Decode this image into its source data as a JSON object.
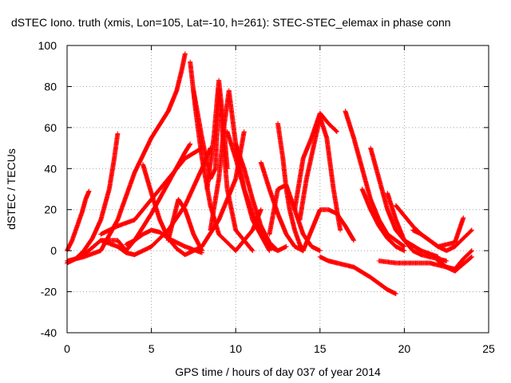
{
  "chart_data": {
    "type": "scatter",
    "title": "dSTEC Iono. truth (xmis, Lon=105, Lat=-10, h=261): STEC-STEC_elemax in phase conn",
    "xlabel": "GPS time / hours of day 037 of year 2014",
    "ylabel": "dSTEC  / TECUs",
    "xlim": [
      0,
      25
    ],
    "ylim": [
      -40,
      100
    ],
    "xticks": [
      0,
      5,
      10,
      15,
      20,
      25
    ],
    "yticks": [
      -40,
      -20,
      0,
      20,
      40,
      60,
      80,
      100
    ],
    "grid": true,
    "marker": "+",
    "color": "#ff0000",
    "series": [
      {
        "x": [
          0.0,
          0.3,
          0.6,
          0.9,
          1.1,
          1.3
        ],
        "y": [
          0,
          5,
          12,
          19,
          25,
          29
        ]
      },
      {
        "x": [
          0.0,
          0.5,
          1.0,
          1.5,
          2.0,
          2.5,
          2.8,
          3.0
        ],
        "y": [
          -6,
          -4,
          0,
          6,
          15,
          30,
          45,
          57
        ]
      },
      {
        "x": [
          0.0,
          1.0,
          2.0,
          3.0,
          4.0,
          5.0,
          6.0,
          6.5,
          6.8,
          7.0
        ],
        "y": [
          -5,
          -3,
          0,
          15,
          38,
          55,
          68,
          78,
          88,
          96
        ]
      },
      {
        "x": [
          0.0,
          1.0,
          2.0,
          3.0,
          3.5,
          4.0,
          5.0,
          6.0,
          7.0,
          7.3
        ],
        "y": [
          -6,
          -2,
          5,
          5,
          0,
          5,
          18,
          33,
          48,
          52
        ]
      },
      {
        "x": [
          2.0,
          3.0,
          3.5,
          4.0,
          5.0,
          6.0,
          7.0,
          8.0,
          8.5
        ],
        "y": [
          5,
          2,
          -1,
          -2,
          2,
          10,
          22,
          40,
          50
        ]
      },
      {
        "x": [
          3.5,
          4.0,
          4.5,
          5.0,
          5.5,
          6.0,
          7.0,
          8.0
        ],
        "y": [
          3,
          5,
          8,
          10,
          9,
          6,
          2,
          -1
        ]
      },
      {
        "x": [
          4.5,
          5.0,
          5.5,
          6.0,
          6.5,
          7.0,
          8.0,
          9.0,
          10.0,
          10.5
        ],
        "y": [
          42,
          28,
          15,
          6,
          1,
          -2,
          2,
          15,
          35,
          58
        ]
      },
      {
        "x": [
          6.0,
          6.3,
          6.6,
          7.0,
          7.5,
          8.0
        ],
        "y": [
          5,
          15,
          25,
          20,
          8,
          0
        ]
      },
      {
        "x": [
          7.3,
          7.6,
          8.0,
          8.5,
          9.0,
          10.0,
          11.0,
          11.5
        ],
        "y": [
          92,
          70,
          45,
          22,
          8,
          0,
          10,
          20
        ]
      },
      {
        "x": [
          7.5,
          8.0,
          8.5,
          8.8,
          9.0,
          9.5,
          10.0,
          11.0
        ],
        "y": [
          78,
          55,
          35,
          40,
          78,
          30,
          10,
          0
        ]
      },
      {
        "x": [
          8.3,
          8.7,
          9.0,
          9.3,
          9.5
        ],
        "y": [
          30,
          55,
          83,
          60,
          40
        ]
      },
      {
        "x": [
          8.5,
          9.0,
          9.3,
          9.6,
          10.0,
          10.5,
          11.0,
          12.0
        ],
        "y": [
          10,
          35,
          60,
          78,
          52,
          30,
          15,
          0
        ]
      },
      {
        "x": [
          9.5,
          10.0,
          10.5,
          11.0,
          11.5,
          12.0,
          12.5
        ],
        "y": [
          58,
          45,
          30,
          18,
          8,
          2,
          0
        ]
      },
      {
        "x": [
          10.0,
          10.5,
          11.0,
          11.5,
          12.0,
          12.5,
          13.0
        ],
        "y": [
          52,
          40,
          25,
          12,
          4,
          0,
          2
        ]
      },
      {
        "x": [
          11.5,
          12.0,
          12.5,
          13.0,
          13.5,
          14.0
        ],
        "y": [
          43,
          30,
          18,
          8,
          2,
          0
        ]
      },
      {
        "x": [
          12.5,
          12.8,
          13.0,
          13.2,
          13.5,
          13.8,
          14.0
        ],
        "y": [
          62,
          45,
          30,
          20,
          10,
          3,
          0
        ]
      },
      {
        "x": [
          12.0,
          12.5,
          13.0,
          13.5,
          14.0,
          14.5,
          15.0
        ],
        "y": [
          8,
          30,
          32,
          20,
          8,
          2,
          0
        ]
      },
      {
        "x": [
          13.5,
          14.0,
          14.5,
          15.0,
          15.5,
          16.0
        ],
        "y": [
          20,
          45,
          55,
          67,
          62,
          58
        ]
      },
      {
        "x": [
          13.8,
          14.2,
          14.6,
          15.0,
          15.4,
          15.8,
          16.2
        ],
        "y": [
          15,
          35,
          50,
          65,
          55,
          30,
          10
        ]
      },
      {
        "x": [
          14.0,
          14.5,
          15.0,
          15.5,
          16.0,
          16.5,
          17.0
        ],
        "y": [
          0,
          10,
          20,
          20,
          18,
          12,
          5
        ]
      },
      {
        "x": [
          15.0,
          15.5,
          16.0,
          17.0,
          18.0,
          19.0,
          19.5
        ],
        "y": [
          -3,
          -5,
          -6,
          -8,
          -13,
          -19,
          -21
        ]
      },
      {
        "x": [
          16.5,
          17.0,
          17.5,
          18.0,
          18.5,
          19.0,
          20.0
        ],
        "y": [
          68,
          55,
          40,
          25,
          15,
          8,
          2
        ]
      },
      {
        "x": [
          17.5,
          18.0,
          18.5,
          19.0,
          19.5,
          20.0
        ],
        "y": [
          30,
          20,
          12,
          6,
          2,
          0
        ]
      },
      {
        "x": [
          18.0,
          18.5,
          19.0,
          19.5,
          20.0,
          21.0,
          22.0
        ],
        "y": [
          50,
          35,
          20,
          10,
          5,
          0,
          -3
        ]
      },
      {
        "x": [
          19.0,
          19.5,
          20.0,
          20.5,
          21.0,
          22.0,
          22.5
        ],
        "y": [
          28,
          15,
          5,
          0,
          -2,
          -4,
          -5
        ]
      },
      {
        "x": [
          19.5,
          20.0,
          20.5,
          21.0,
          22.0,
          23.0,
          23.5
        ],
        "y": [
          22,
          17,
          12,
          8,
          2,
          4,
          16
        ]
      },
      {
        "x": [
          18.5,
          19.5,
          20.5,
          21.5,
          22.5,
          23.0,
          24.0
        ],
        "y": [
          -5,
          -6,
          -6,
          -6,
          -8,
          -10,
          -3
        ]
      },
      {
        "x": [
          20.5,
          21.0,
          21.5,
          22.0,
          22.5,
          23.0,
          24.0
        ],
        "y": [
          10,
          8,
          5,
          2,
          0,
          2,
          10
        ]
      },
      {
        "x": [
          22.0,
          22.5,
          23.0,
          23.5,
          24.0
        ],
        "y": [
          -5,
          -8,
          -9,
          -4,
          0
        ]
      },
      {
        "x": [
          2.0,
          3.0,
          4.0,
          5.0,
          6.0,
          7.0,
          8.0
        ],
        "y": [
          8,
          12,
          15,
          25,
          35,
          45,
          50
        ]
      }
    ]
  }
}
